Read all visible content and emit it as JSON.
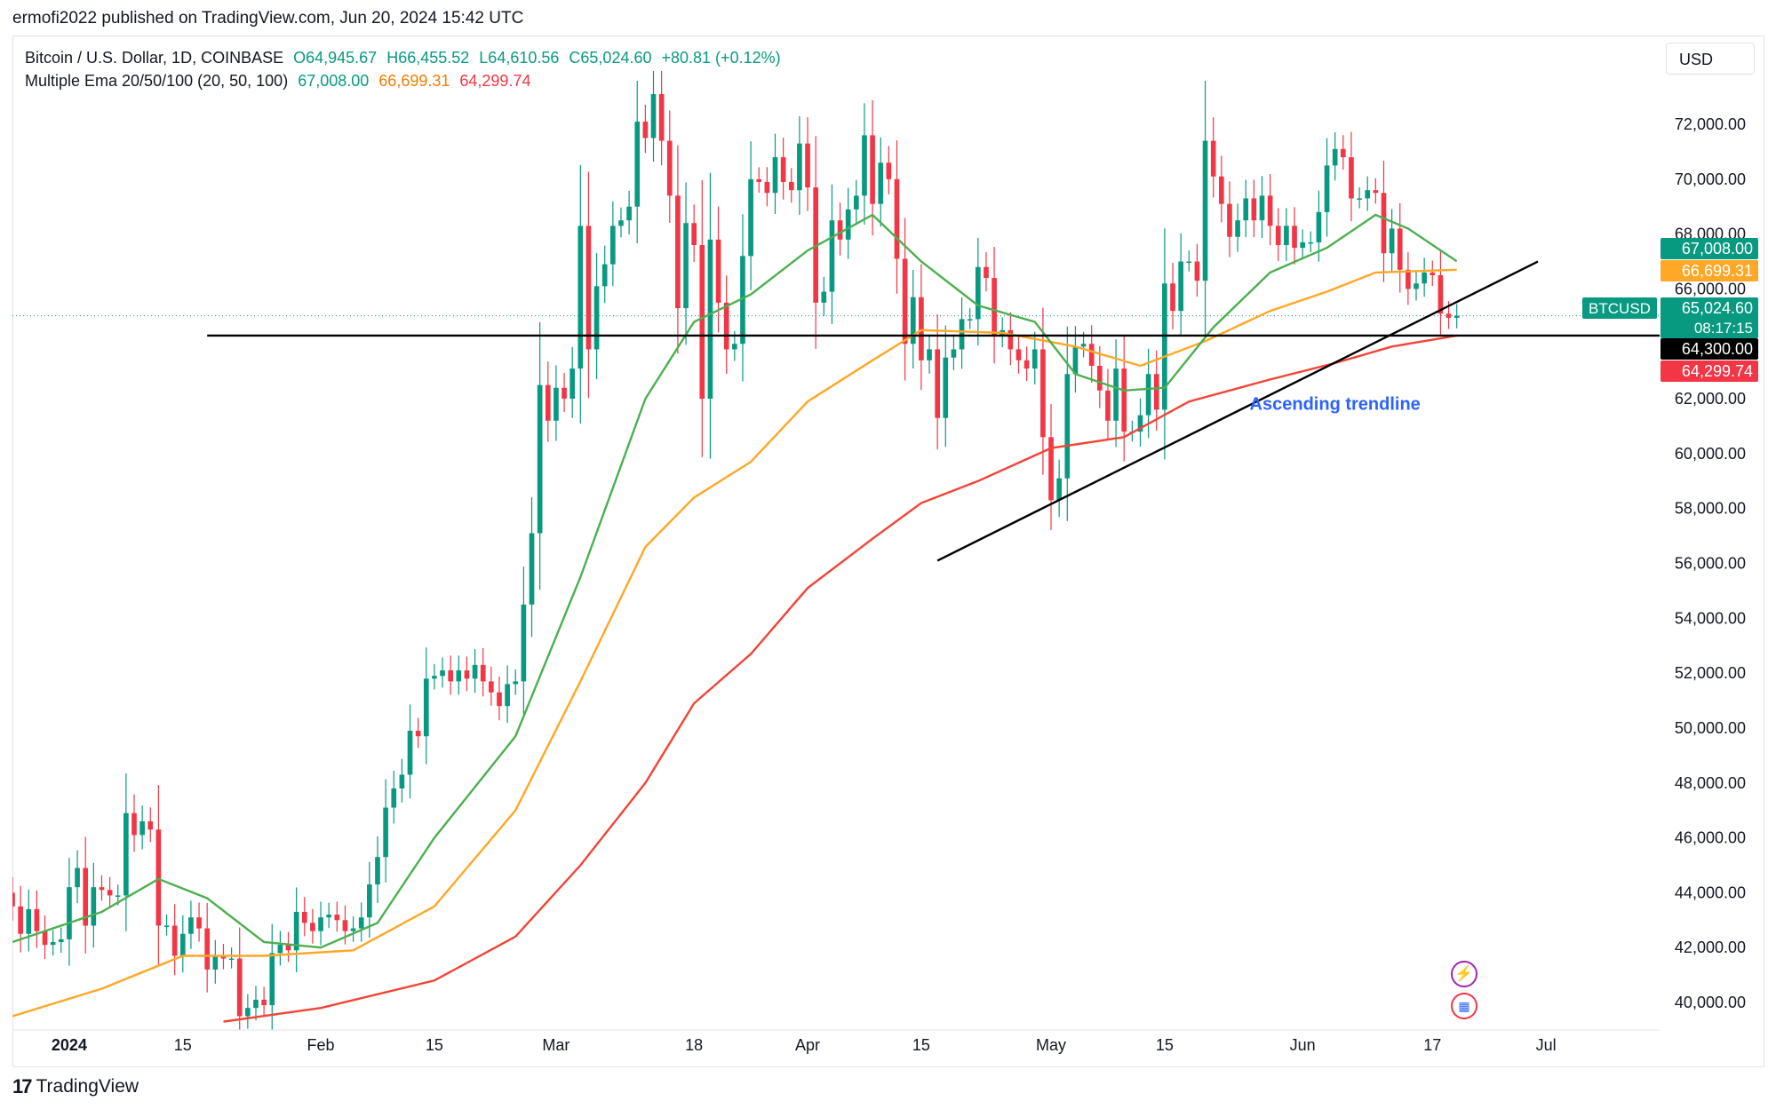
{
  "header": {
    "credit": "ermofi2022 published on TradingView.com, Jun 20, 2024 15:42 UTC",
    "symbol_line": "Bitcoin / U.S. Dollar, 1D, COINBASE",
    "ohlc": {
      "open": "O64,945.67",
      "high": "H66,455.52",
      "low": "L64,610.56",
      "close": "C65,024.60",
      "change": "+80.81 (+0.12%)"
    },
    "ema_label": "Multiple Ema 20/50/100 (20, 50, 100)",
    "ema_values": {
      "ema20": "67,008.00",
      "ema50": "66,699.31",
      "ema100": "64,299.74"
    }
  },
  "currency_button": "USD",
  "footer": {
    "brand": "TradingView",
    "mark": "17"
  },
  "colors": {
    "up": "#089981",
    "down": "#f23645",
    "ema20": "#4caf50",
    "ema50": "#ffa726",
    "ema100": "#f44336",
    "trend": "#000000",
    "annotation": "#2962ff"
  },
  "chart_data": {
    "type": "candlestick",
    "symbol": "BTCUSD",
    "ylim": [
      39000,
      73500
    ],
    "y_ticks": [
      "72,000.00",
      "70,000.00",
      "68,000.00",
      "66,000.00",
      "64,000.00",
      "62,000.00",
      "60,000.00",
      "58,000.00",
      "56,000.00",
      "54,000.00",
      "52,000.00",
      "50,000.00",
      "48,000.00",
      "46,000.00",
      "44,000.00",
      "42,000.00",
      "40,000.00"
    ],
    "y_tick_values": [
      72000,
      70000,
      68000,
      66000,
      64000,
      62000,
      60000,
      58000,
      56000,
      54000,
      52000,
      50000,
      48000,
      46000,
      44000,
      42000,
      40000
    ],
    "x_ticks": [
      {
        "label": "2024",
        "date": "2024-01-01"
      },
      {
        "label": "15",
        "date": "2024-01-15"
      },
      {
        "label": "Feb",
        "date": "2024-02-01"
      },
      {
        "label": "15",
        "date": "2024-02-15"
      },
      {
        "label": "Mar",
        "date": "2024-03-01"
      },
      {
        "label": "18",
        "date": "2024-03-18"
      },
      {
        "label": "Apr",
        "date": "2024-04-01"
      },
      {
        "label": "15",
        "date": "2024-04-15"
      },
      {
        "label": "May",
        "date": "2024-05-01"
      },
      {
        "label": "15",
        "date": "2024-05-15"
      },
      {
        "label": "Jun",
        "date": "2024-06-01"
      },
      {
        "label": "17",
        "date": "2024-06-17"
      },
      {
        "label": "Jul",
        "date": "2024-07-01"
      }
    ],
    "x_range": [
      "2023-12-25",
      "2024-07-15"
    ],
    "closes": [
      [
        "2023-12-25",
        43500
      ],
      [
        "2023-12-26",
        42500
      ],
      [
        "2023-12-27",
        43400
      ],
      [
        "2023-12-28",
        42600
      ],
      [
        "2023-12-29",
        42100
      ],
      [
        "2023-12-30",
        42200
      ],
      [
        "2023-12-31",
        42300
      ],
      [
        "2024-01-01",
        44200
      ],
      [
        "2024-01-02",
        44900
      ],
      [
        "2024-01-03",
        42800
      ],
      [
        "2024-01-04",
        44200
      ],
      [
        "2024-01-05",
        44100
      ],
      [
        "2024-01-06",
        43900
      ],
      [
        "2024-01-07",
        43900
      ],
      [
        "2024-01-08",
        46900
      ],
      [
        "2024-01-09",
        46100
      ],
      [
        "2024-01-10",
        46600
      ],
      [
        "2024-01-11",
        46300
      ],
      [
        "2024-01-12",
        42800
      ],
      [
        "2024-01-13",
        42800
      ],
      [
        "2024-01-14",
        41700
      ],
      [
        "2024-01-15",
        42500
      ],
      [
        "2024-01-16",
        43100
      ],
      [
        "2024-01-17",
        42700
      ],
      [
        "2024-01-18",
        41200
      ],
      [
        "2024-01-19",
        41700
      ],
      [
        "2024-01-20",
        41600
      ],
      [
        "2024-01-21",
        41600
      ],
      [
        "2024-01-22",
        39500
      ],
      [
        "2024-01-23",
        39800
      ],
      [
        "2024-01-24",
        40100
      ],
      [
        "2024-01-25",
        39900
      ],
      [
        "2024-01-26",
        41800
      ],
      [
        "2024-01-27",
        42100
      ],
      [
        "2024-01-28",
        41900
      ],
      [
        "2024-01-29",
        43300
      ],
      [
        "2024-01-30",
        42900
      ],
      [
        "2024-01-31",
        42600
      ],
      [
        "2024-02-01",
        43100
      ],
      [
        "2024-02-02",
        43200
      ],
      [
        "2024-02-03",
        43000
      ],
      [
        "2024-02-04",
        42600
      ],
      [
        "2024-02-05",
        42700
      ],
      [
        "2024-02-06",
        43100
      ],
      [
        "2024-02-07",
        44300
      ],
      [
        "2024-02-08",
        45300
      ],
      [
        "2024-02-09",
        47100
      ],
      [
        "2024-02-10",
        47800
      ],
      [
        "2024-02-11",
        48300
      ],
      [
        "2024-02-12",
        49900
      ],
      [
        "2024-02-13",
        49700
      ],
      [
        "2024-02-14",
        51800
      ],
      [
        "2024-02-15",
        51900
      ],
      [
        "2024-02-16",
        52100
      ],
      [
        "2024-02-17",
        51700
      ],
      [
        "2024-02-18",
        52100
      ],
      [
        "2024-02-19",
        51800
      ],
      [
        "2024-02-20",
        52300
      ],
      [
        "2024-02-21",
        51700
      ],
      [
        "2024-02-22",
        51300
      ],
      [
        "2024-02-23",
        50800
      ],
      [
        "2024-02-24",
        51600
      ],
      [
        "2024-02-25",
        51700
      ],
      [
        "2024-02-26",
        54500
      ],
      [
        "2024-02-27",
        57100
      ],
      [
        "2024-02-28",
        62500
      ],
      [
        "2024-02-29",
        61200
      ],
      [
        "2024-03-01",
        62400
      ],
      [
        "2024-03-02",
        62000
      ],
      [
        "2024-03-03",
        63100
      ],
      [
        "2024-03-04",
        68300
      ],
      [
        "2024-03-05",
        63800
      ],
      [
        "2024-03-06",
        66100
      ],
      [
        "2024-03-07",
        66900
      ],
      [
        "2024-03-08",
        68300
      ],
      [
        "2024-03-09",
        68500
      ],
      [
        "2024-03-10",
        69000
      ],
      [
        "2024-03-11",
        72100
      ],
      [
        "2024-03-12",
        71500
      ],
      [
        "2024-03-13",
        73100
      ],
      [
        "2024-03-14",
        71400
      ],
      [
        "2024-03-15",
        69400
      ],
      [
        "2024-03-16",
        65300
      ],
      [
        "2024-03-17",
        68400
      ],
      [
        "2024-03-18",
        67600
      ],
      [
        "2024-03-19",
        62000
      ],
      [
        "2024-03-20",
        67800
      ],
      [
        "2024-03-21",
        65500
      ],
      [
        "2024-03-22",
        63800
      ],
      [
        "2024-03-23",
        64000
      ],
      [
        "2024-03-24",
        67200
      ],
      [
        "2024-03-25",
        70000
      ],
      [
        "2024-03-26",
        69900
      ],
      [
        "2024-03-27",
        69500
      ],
      [
        "2024-03-28",
        70800
      ],
      [
        "2024-03-29",
        69900
      ],
      [
        "2024-03-30",
        69600
      ],
      [
        "2024-03-31",
        71300
      ],
      [
        "2024-04-01",
        69700
      ],
      [
        "2024-04-02",
        65500
      ],
      [
        "2024-04-03",
        65900
      ],
      [
        "2024-04-04",
        68500
      ],
      [
        "2024-04-05",
        67800
      ],
      [
        "2024-04-06",
        68900
      ],
      [
        "2024-04-07",
        69400
      ],
      [
        "2024-04-08",
        71600
      ],
      [
        "2024-04-09",
        69100
      ],
      [
        "2024-04-10",
        70600
      ],
      [
        "2024-04-11",
        70000
      ],
      [
        "2024-04-12",
        67100
      ],
      [
        "2024-04-13",
        64000
      ],
      [
        "2024-04-14",
        65700
      ],
      [
        "2024-04-15",
        63400
      ],
      [
        "2024-04-16",
        63800
      ],
      [
        "2024-04-17",
        61300
      ],
      [
        "2024-04-18",
        63500
      ],
      [
        "2024-04-19",
        63800
      ],
      [
        "2024-04-20",
        64900
      ],
      [
        "2024-04-21",
        64900
      ],
      [
        "2024-04-22",
        66800
      ],
      [
        "2024-04-23",
        66400
      ],
      [
        "2024-04-24",
        64300
      ],
      [
        "2024-04-25",
        64500
      ],
      [
        "2024-04-26",
        63800
      ],
      [
        "2024-04-27",
        63400
      ],
      [
        "2024-04-28",
        63100
      ],
      [
        "2024-04-29",
        63800
      ],
      [
        "2024-04-30",
        60600
      ],
      [
        "2024-05-01",
        58300
      ],
      [
        "2024-05-02",
        59100
      ],
      [
        "2024-05-03",
        62900
      ],
      [
        "2024-05-04",
        63900
      ],
      [
        "2024-05-05",
        64000
      ],
      [
        "2024-05-06",
        63200
      ],
      [
        "2024-05-07",
        62300
      ],
      [
        "2024-05-08",
        61200
      ],
      [
        "2024-05-09",
        63100
      ],
      [
        "2024-05-10",
        60800
      ],
      [
        "2024-05-11",
        60800
      ],
      [
        "2024-05-12",
        61400
      ],
      [
        "2024-05-13",
        62900
      ],
      [
        "2024-05-14",
        61600
      ],
      [
        "2024-05-15",
        66200
      ],
      [
        "2024-05-16",
        65200
      ],
      [
        "2024-05-17",
        67000
      ],
      [
        "2024-05-18",
        67000
      ],
      [
        "2024-05-19",
        66300
      ],
      [
        "2024-05-20",
        71400
      ],
      [
        "2024-05-21",
        70100
      ],
      [
        "2024-05-22",
        69100
      ],
      [
        "2024-05-23",
        67900
      ],
      [
        "2024-05-24",
        68500
      ],
      [
        "2024-05-25",
        69300
      ],
      [
        "2024-05-26",
        68500
      ],
      [
        "2024-05-27",
        69400
      ],
      [
        "2024-05-28",
        68300
      ],
      [
        "2024-05-29",
        67600
      ],
      [
        "2024-05-30",
        68300
      ],
      [
        "2024-05-31",
        67500
      ],
      [
        "2024-06-01",
        67700
      ],
      [
        "2024-06-02",
        67700
      ],
      [
        "2024-06-03",
        68800
      ],
      [
        "2024-06-04",
        70500
      ],
      [
        "2024-06-05",
        71100
      ],
      [
        "2024-06-06",
        70800
      ],
      [
        "2024-06-07",
        69300
      ],
      [
        "2024-06-08",
        69300
      ],
      [
        "2024-06-09",
        69600
      ],
      [
        "2024-06-10",
        69500
      ],
      [
        "2024-06-11",
        67300
      ],
      [
        "2024-06-12",
        68200
      ],
      [
        "2024-06-13",
        66700
      ],
      [
        "2024-06-14",
        66000
      ],
      [
        "2024-06-15",
        66200
      ],
      [
        "2024-06-16",
        66600
      ],
      [
        "2024-06-17",
        66500
      ],
      [
        "2024-06-18",
        65100
      ],
      [
        "2024-06-19",
        64950
      ],
      [
        "2024-06-20",
        65024.6
      ]
    ],
    "series": [
      {
        "name": "Multiple Ema 20/50/100",
        "value": "67,008.00",
        "period": 20
      },
      {
        "name": "Multiple Ema 20/50/100",
        "value": "66,699.31",
        "period": 50
      },
      {
        "name": "Multiple Ema 20/50/100",
        "value": "64,299.74",
        "period": 100
      }
    ],
    "ema_points": {
      "ema20": [
        [
          "2023-12-25",
          42200
        ],
        [
          "2024-01-05",
          43300
        ],
        [
          "2024-01-12",
          44500
        ],
        [
          "2024-01-18",
          43800
        ],
        [
          "2024-01-25",
          42200
        ],
        [
          "2024-02-01",
          42000
        ],
        [
          "2024-02-08",
          42900
        ],
        [
          "2024-02-15",
          46000
        ],
        [
          "2024-02-25",
          49700
        ],
        [
          "2024-03-04",
          55500
        ],
        [
          "2024-03-12",
          62000
        ],
        [
          "2024-03-18",
          64800
        ],
        [
          "2024-03-25",
          65800
        ],
        [
          "2024-04-01",
          67400
        ],
        [
          "2024-04-09",
          68700
        ],
        [
          "2024-04-15",
          67000
        ],
        [
          "2024-04-22",
          65400
        ],
        [
          "2024-04-29",
          64800
        ],
        [
          "2024-05-04",
          62900
        ],
        [
          "2024-05-10",
          62300
        ],
        [
          "2024-05-15",
          62400
        ],
        [
          "2024-05-21",
          64600
        ],
        [
          "2024-05-28",
          66600
        ],
        [
          "2024-06-04",
          67500
        ],
        [
          "2024-06-10",
          68700
        ],
        [
          "2024-06-14",
          68200
        ],
        [
          "2024-06-20",
          67008
        ]
      ],
      "ema50": [
        [
          "2023-12-25",
          39500
        ],
        [
          "2024-01-05",
          40500
        ],
        [
          "2024-01-15",
          41700
        ],
        [
          "2024-01-25",
          41700
        ],
        [
          "2024-02-05",
          41900
        ],
        [
          "2024-02-15",
          43500
        ],
        [
          "2024-02-25",
          47000
        ],
        [
          "2024-03-04",
          51700
        ],
        [
          "2024-03-12",
          56600
        ],
        [
          "2024-03-18",
          58400
        ],
        [
          "2024-03-25",
          59700
        ],
        [
          "2024-04-01",
          61900
        ],
        [
          "2024-04-09",
          63400
        ],
        [
          "2024-04-15",
          64500
        ],
        [
          "2024-04-25",
          64400
        ],
        [
          "2024-05-04",
          63900
        ],
        [
          "2024-05-12",
          63200
        ],
        [
          "2024-05-20",
          64100
        ],
        [
          "2024-05-28",
          65200
        ],
        [
          "2024-06-04",
          65900
        ],
        [
          "2024-06-10",
          66600
        ],
        [
          "2024-06-20",
          66699.31
        ]
      ],
      "ema100": [
        [
          "2024-01-20",
          39300
        ],
        [
          "2024-02-01",
          39800
        ],
        [
          "2024-02-15",
          40800
        ],
        [
          "2024-02-25",
          42400
        ],
        [
          "2024-03-04",
          45000
        ],
        [
          "2024-03-12",
          48000
        ],
        [
          "2024-03-18",
          50900
        ],
        [
          "2024-03-25",
          52700
        ],
        [
          "2024-04-01",
          55100
        ],
        [
          "2024-04-09",
          56900
        ],
        [
          "2024-04-15",
          58200
        ],
        [
          "2024-04-22",
          59000
        ],
        [
          "2024-05-01",
          60200
        ],
        [
          "2024-05-10",
          60600
        ],
        [
          "2024-05-18",
          61900
        ],
        [
          "2024-05-28",
          62700
        ],
        [
          "2024-06-05",
          63300
        ],
        [
          "2024-06-12",
          63900
        ],
        [
          "2024-06-20",
          64299.74
        ]
      ]
    },
    "horizontal_line": {
      "from": "2024-01-18",
      "to": "2024-07-15",
      "value": 64300
    },
    "trendline": {
      "from": [
        "2024-04-17",
        56100
      ],
      "to": [
        "2024-06-30",
        67000
      ]
    },
    "annotation": {
      "text": "Ascending trendline",
      "date": "2024-06-05",
      "value": 61600
    },
    "price_labels": [
      {
        "text": "67,008.00",
        "value": 67008,
        "color": "#089981"
      },
      {
        "text": "66,699.31",
        "value": 66699.31,
        "color": "#ffa726"
      },
      {
        "text": "65,024.60",
        "value": 65024.6,
        "color": "#089981",
        "sub": "08:17:15",
        "tag": "BTCUSD"
      },
      {
        "text": "64,300.00",
        "value": 64300,
        "color": "#000000"
      },
      {
        "text": "64,299.74",
        "value": 64299.74,
        "color": "#f23645"
      }
    ],
    "grid": false
  }
}
